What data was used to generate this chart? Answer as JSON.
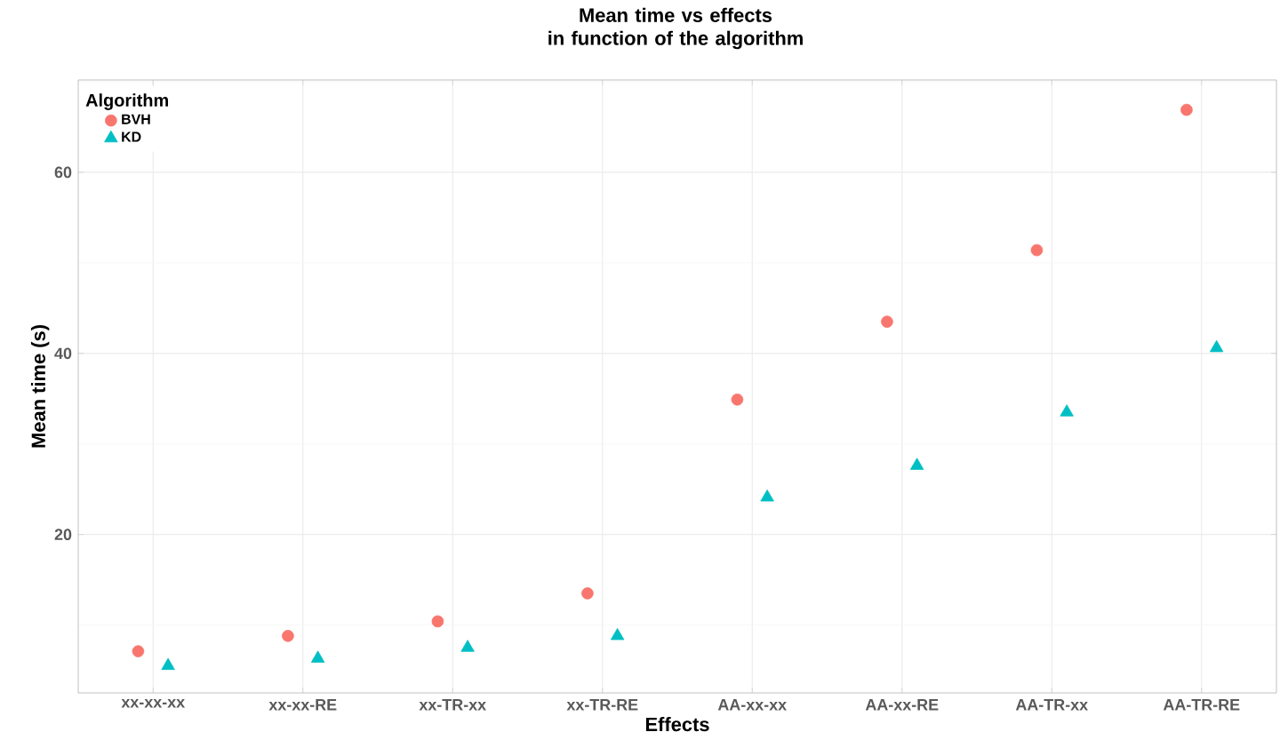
{
  "chart_data": {
    "type": "scatter",
    "title": "Mean time vs effects\nin function of the algorithm",
    "xlabel": "Effects",
    "ylabel": "Mean time (s)",
    "legend_title": "Algorithm",
    "categories": [
      "xx-xx-xx",
      "xx-xx-RE",
      "xx-TR-xx",
      "xx-TR-RE",
      "AA-xx-xx",
      "AA-xx-RE",
      "AA-TR-xx",
      "AA-TR-RE"
    ],
    "series": [
      {
        "name": "BVH",
        "color": "#f8766d",
        "marker": "circle",
        "values": [
          7.1,
          8.8,
          10.4,
          13.5,
          34.9,
          43.5,
          51.4,
          66.9
        ]
      },
      {
        "name": "KD",
        "color": "#00bfc4",
        "marker": "triangle",
        "values": [
          5.5,
          6.3,
          7.5,
          8.8,
          24.1,
          27.6,
          33.5,
          40.6
        ]
      }
    ],
    "ylim": [
      2.5,
      70.2
    ],
    "yticks": [
      20,
      40,
      60
    ],
    "grid": true,
    "legend": "top left"
  }
}
